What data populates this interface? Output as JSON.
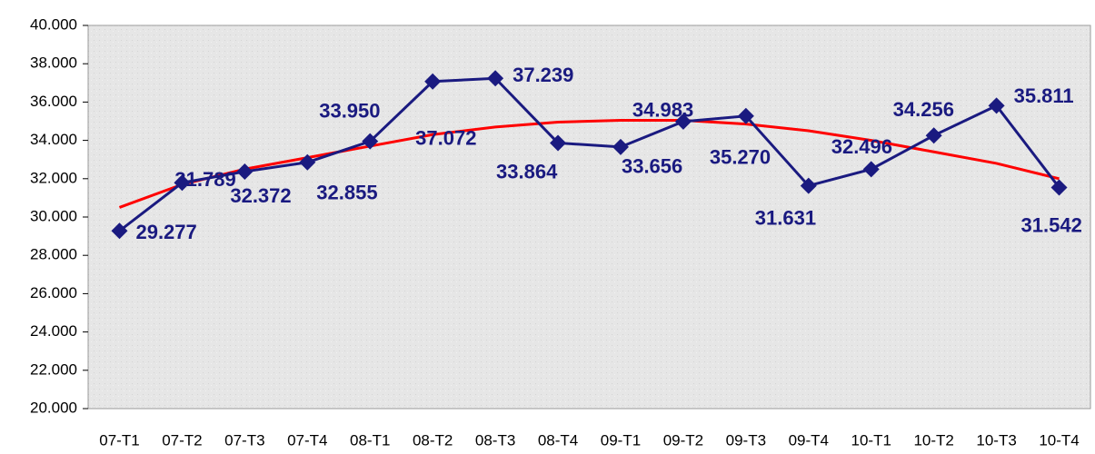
{
  "chart_data": {
    "type": "line",
    "categories": [
      "07-T1",
      "07-T2",
      "07-T3",
      "07-T4",
      "08-T1",
      "08-T2",
      "08-T3",
      "08-T4",
      "09-T1",
      "09-T2",
      "09-T3",
      "09-T4",
      "10-T1",
      "10-T2",
      "10-T3",
      "10-T4"
    ],
    "series": [
      {
        "color": "#1a1a80",
        "values": [
          29.277,
          31.789,
          32.372,
          32.855,
          33.95,
          37.072,
          37.239,
          33.864,
          33.656,
          34.983,
          35.27,
          31.631,
          32.496,
          34.256,
          35.811,
          31.542
        ],
        "value_labels": [
          "29.277",
          "31.789",
          "32.372",
          "32.855",
          "33.950",
          "37.072",
          "37.239",
          "33.864",
          "33.656",
          "34.983",
          "35.270",
          "31.631",
          "32.496",
          "34.256",
          "35.811",
          "31.542"
        ]
      }
    ],
    "trend": {
      "color": "#ff0000",
      "values": [
        30.5,
        31.7,
        32.5,
        33.1,
        33.7,
        34.3,
        34.7,
        34.95,
        35.05,
        35.05,
        34.85,
        34.5,
        34.0,
        33.4,
        32.8,
        32.0
      ]
    },
    "ylim": [
      20,
      40
    ],
    "yticks": [
      {
        "value": 20,
        "label": "20.000"
      },
      {
        "value": 22,
        "label": "22.000"
      },
      {
        "value": 24,
        "label": "24.000"
      },
      {
        "value": 26,
        "label": "26.000"
      },
      {
        "value": 28,
        "label": "28.000"
      },
      {
        "value": 30,
        "label": "30.000"
      },
      {
        "value": 32,
        "label": "32.000"
      },
      {
        "value": 34,
        "label": "34.000"
      },
      {
        "value": 36,
        "label": "36.000"
      },
      {
        "value": 38,
        "label": "38.000"
      },
      {
        "value": 40,
        "label": "40.000"
      }
    ]
  }
}
